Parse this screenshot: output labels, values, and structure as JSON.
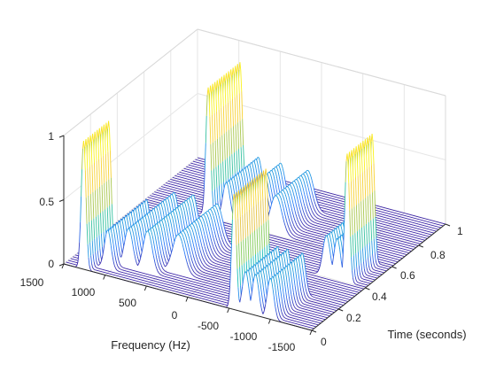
{
  "chart_data": {
    "type": "waterfall",
    "title": "",
    "xlabel": "Frequency (Hz)",
    "ylabel": "Time (seconds)",
    "zlabel": "",
    "x_ticks": [
      "1500",
      "1000",
      "500",
      "0",
      "-500",
      "-1000",
      "-1500"
    ],
    "y_ticks": [
      "0",
      "0.2",
      "0.4",
      "0.6",
      "0.8",
      "1"
    ],
    "z_ticks": [
      "0",
      "0.5",
      "1"
    ],
    "xlim": [
      -1500,
      1500
    ],
    "ylim": [
      0,
      1
    ],
    "zlim": [
      0,
      1
    ],
    "grid": true,
    "colormap": [
      "#3e26a8",
      "#2e7ffb",
      "#16bdc0",
      "#80cb58",
      "#f6c03b",
      "#f9fb15"
    ],
    "time_slices": 60,
    "peak_tracks": [
      {
        "freq_hz": 1260,
        "t_start": 0.0,
        "t_end": 0.2,
        "amplitude": 1.0,
        "width_hz": 28
      },
      {
        "freq_hz": 1050,
        "t_start": 0.05,
        "t_end": 0.35,
        "amplitude": 0.3,
        "width_hz": 40
      },
      {
        "freq_hz": 880,
        "t_start": 0.1,
        "t_end": 0.45,
        "amplitude": 0.3,
        "width_hz": 50
      },
      {
        "freq_hz": 650,
        "t_start": 0.1,
        "t_end": 0.45,
        "amplitude": 0.32,
        "width_hz": 55
      },
      {
        "freq_hz": 360,
        "t_start": 0.15,
        "t_end": 0.45,
        "amplitude": 0.3,
        "width_hz": 70
      },
      {
        "freq_hz": 740,
        "t_start": 0.6,
        "t_end": 0.85,
        "amplitude": 1.0,
        "width_hz": 28
      },
      {
        "freq_hz": 520,
        "t_start": 0.6,
        "t_end": 0.85,
        "amplitude": 0.3,
        "width_hz": 45
      },
      {
        "freq_hz": 250,
        "t_start": 0.6,
        "t_end": 0.85,
        "amplitude": 0.3,
        "width_hz": 55
      },
      {
        "freq_hz": -80,
        "t_start": 0.6,
        "t_end": 0.85,
        "amplitude": 0.3,
        "width_hz": 70
      },
      {
        "freq_hz": -560,
        "t_start": 0.0,
        "t_end": 0.25,
        "amplitude": 0.9,
        "width_hz": 28
      },
      {
        "freq_hz": -700,
        "t_start": 0.0,
        "t_end": 0.25,
        "amplitude": 0.32,
        "width_hz": 40
      },
      {
        "freq_hz": -820,
        "t_start": 0.0,
        "t_end": 0.25,
        "amplitude": 0.32,
        "width_hz": 40
      },
      {
        "freq_hz": -1000,
        "t_start": 0.0,
        "t_end": 0.25,
        "amplitude": 0.32,
        "width_hz": 40
      },
      {
        "freq_hz": -1270,
        "t_start": 0.4,
        "t_end": 0.6,
        "amplitude": 1.0,
        "width_hz": 28
      },
      {
        "freq_hz": -1150,
        "t_start": 0.4,
        "t_end": 0.6,
        "amplitude": 0.32,
        "width_hz": 40
      },
      {
        "freq_hz": -1020,
        "t_start": 0.4,
        "t_end": 0.6,
        "amplitude": 0.32,
        "width_hz": 45
      }
    ]
  }
}
